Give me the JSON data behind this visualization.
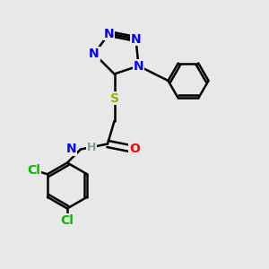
{
  "bg_color": "#e8e8e8",
  "bond_color": "#000000",
  "bond_lw": 1.8,
  "atom_colors": {
    "N": "#0000ff",
    "O": "#ff0000",
    "S": "#aaaa00",
    "Cl": "#00bb00",
    "C": "#000000",
    "H": "#7fa0a0"
  },
  "font_size": 10,
  "font_size_small": 9
}
